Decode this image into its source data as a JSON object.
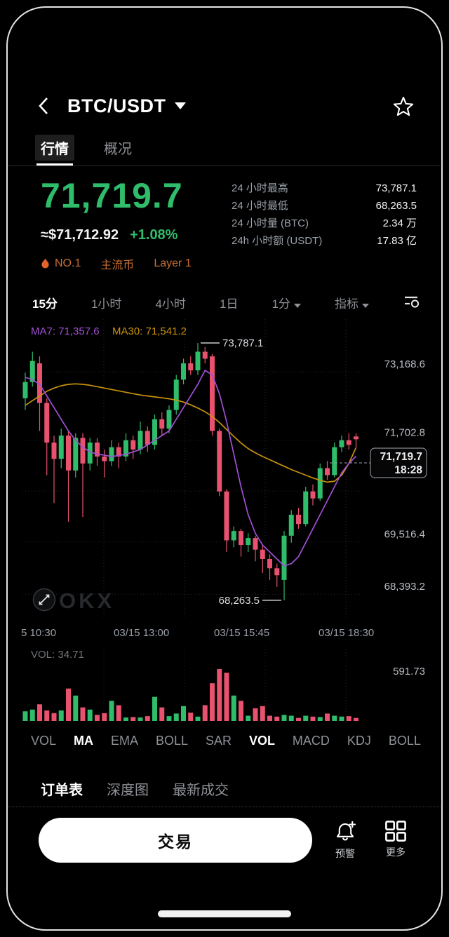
{
  "colors": {
    "up": "#2FBD6B",
    "down": "#E8526F",
    "ma7": "#A24FD4",
    "ma30": "#C9920E",
    "badge": "#C96F35",
    "price_green": "#2FBD6B"
  },
  "header": {
    "title": "BTC/USDT"
  },
  "tabs": [
    {
      "label": "行情",
      "active": true
    },
    {
      "label": "概况",
      "active": false
    }
  ],
  "price": {
    "last": "71,719.7",
    "fiat": "≈$71,712.92",
    "change": "+1.08%"
  },
  "stats": [
    {
      "label": "24 小时最高",
      "value": "73,787.1"
    },
    {
      "label": "24 小时最低",
      "value": "68,263.5"
    },
    {
      "label": "24 小时量 (BTC)",
      "value": "2.34 万"
    },
    {
      "label": "24h 小时额 (USDT)",
      "value": "17.83 亿"
    }
  ],
  "badges": [
    {
      "label": "NO.1"
    },
    {
      "label": "主流币"
    },
    {
      "label": "Layer 1"
    }
  ],
  "timeframes": [
    {
      "label": "15分",
      "active": true
    },
    {
      "label": "1小时",
      "active": false
    },
    {
      "label": "4小时",
      "active": false
    },
    {
      "label": "1日",
      "active": false
    },
    {
      "label": "1分",
      "active": false,
      "dropdown": true
    },
    {
      "label": "指标",
      "active": false,
      "dropdown": true
    }
  ],
  "chart_data": {
    "type": "candlestick",
    "interval": "15分",
    "legend": {
      "ma7": "MA7: 71,357.6",
      "ma30": "MA30: 71,541.2"
    },
    "watermark": "OKX",
    "axis": {
      "price_top": 74300,
      "price_bottom": 67900,
      "y_labels": [
        {
          "text": "73,168.6",
          "price": 73168.6
        },
        {
          "text": "71,702.8",
          "price": 71702.8
        },
        {
          "text": "69,516.4",
          "price": 69516.4
        },
        {
          "text": "68,393.2",
          "price": 68393.2
        }
      ],
      "h_grid_prices": [
        73168.6,
        71702.8,
        70609.6,
        69516.4,
        68393.2
      ],
      "v_grid_x": [
        118,
        233,
        348,
        463
      ],
      "x_labels": [
        "5 10:30",
        "03/15 13:00",
        "03/15 15:45",
        "03/15 18:30"
      ]
    },
    "annotations": {
      "high": {
        "candle_index": 24,
        "label": "73,787.1"
      },
      "low": {
        "candle_index": 36,
        "label": "68,263.5"
      },
      "current": {
        "price": "71,719.7",
        "time": "18:28"
      }
    },
    "candle_format": [
      "open",
      "close",
      "high",
      "low"
    ],
    "candles": [
      [
        72600,
        72950,
        73150,
        72350
      ],
      [
        72950,
        73400,
        73600,
        72850
      ],
      [
        73350,
        72500,
        73500,
        71900
      ],
      [
        72500,
        71650,
        72600,
        70950
      ],
      [
        71650,
        71300,
        71800,
        70350
      ],
      [
        71300,
        71800,
        71950,
        71100
      ],
      [
        71800,
        71050,
        71900,
        69950
      ],
      [
        71050,
        71750,
        71850,
        70900
      ],
      [
        71750,
        71200,
        71850,
        70050
      ],
      [
        71200,
        71650,
        71750,
        71050
      ],
      [
        71650,
        71350,
        71750,
        71150
      ],
      [
        71350,
        71250,
        71500,
        70900
      ],
      [
        71250,
        71550,
        71700,
        71150
      ],
      [
        71550,
        71350,
        71650,
        71100
      ],
      [
        71350,
        71700,
        71850,
        71250
      ],
      [
        71700,
        71500,
        71800,
        71300
      ],
      [
        71500,
        71900,
        72100,
        71400
      ],
      [
        71900,
        71600,
        72000,
        71450
      ],
      [
        71600,
        72150,
        72250,
        71500
      ],
      [
        72150,
        71950,
        72300,
        71800
      ],
      [
        71950,
        72350,
        72450,
        71850
      ],
      [
        72350,
        73000,
        73100,
        72250
      ],
      [
        73000,
        73350,
        73450,
        72900
      ],
      [
        73350,
        73200,
        73500,
        73100
      ],
      [
        73200,
        73600,
        73787.1,
        73100
      ],
      [
        73600,
        73450,
        73700,
        73350
      ],
      [
        73500,
        71900,
        73550,
        71800
      ],
      [
        71900,
        70600,
        71950,
        70500
      ],
      [
        70600,
        69550,
        70650,
        69300
      ],
      [
        69550,
        69750,
        69850,
        69400
      ],
      [
        69750,
        69450,
        69800,
        69200
      ],
      [
        69450,
        69600,
        69700,
        69300
      ],
      [
        69600,
        69350,
        69650,
        69100
      ],
      [
        69350,
        69150,
        69450,
        68850
      ],
      [
        69150,
        68950,
        69250,
        68700
      ],
      [
        68950,
        68800,
        69050,
        68550
      ],
      [
        68700,
        69650,
        69750,
        68263.5
      ],
      [
        69650,
        70100,
        70200,
        69500
      ],
      [
        70100,
        69900,
        70250,
        69800
      ],
      [
        69900,
        70600,
        70700,
        69850
      ],
      [
        70600,
        70450,
        70750,
        70300
      ],
      [
        70450,
        71100,
        71200,
        70400
      ],
      [
        71100,
        70950,
        71250,
        70850
      ],
      [
        70950,
        71550,
        71650,
        70900
      ],
      [
        71550,
        71700,
        71800,
        71450
      ],
      [
        71700,
        71600,
        71850,
        71500
      ],
      [
        71780,
        71719.7,
        71850,
        71550
      ]
    ],
    "ma7": [
      73050,
      73000,
      72900,
      72650,
      72400,
      72150,
      71900,
      71700,
      71550,
      71450,
      71400,
      71380,
      71350,
      71370,
      71400,
      71450,
      71500,
      71600,
      71700,
      71800,
      71900,
      72150,
      72400,
      72650,
      72900,
      73200,
      73100,
      72700,
      72100,
      71400,
      70700,
      70100,
      69700,
      69450,
      69300,
      69150,
      69000,
      69050,
      69200,
      69500,
      69800,
      70100,
      70400,
      70700,
      71000,
      71200,
      71357.6
    ],
    "ma30": [
      72450,
      72550,
      72650,
      72750,
      72820,
      72870,
      72900,
      72910,
      72900,
      72880,
      72850,
      72820,
      72790,
      72760,
      72730,
      72700,
      72670,
      72650,
      72630,
      72610,
      72590,
      72560,
      72520,
      72460,
      72390,
      72310,
      72210,
      72080,
      71930,
      71780,
      71640,
      71520,
      71430,
      71350,
      71280,
      71210,
      71140,
      71070,
      71010,
      70950,
      70890,
      70840,
      70800,
      70820,
      70950,
      71200,
      71541.2
    ],
    "volume": {
      "label": "VOL: 34.71",
      "max_label": "591.73",
      "max": 591.73,
      "values": [
        110,
        130,
        190,
        120,
        90,
        120,
        370,
        290,
        155,
        130,
        70,
        90,
        230,
        180,
        40,
        45,
        40,
        55,
        275,
        155,
        55,
        85,
        170,
        95,
        50,
        180,
        430,
        591.73,
        550,
        290,
        230,
        60,
        145,
        170,
        60,
        50,
        70,
        60,
        35,
        60,
        50,
        45,
        85,
        60,
        50,
        55,
        34.71
      ]
    }
  },
  "indicators": [
    {
      "label": "VOL",
      "active": false
    },
    {
      "label": "MA",
      "active": true
    },
    {
      "label": "EMA",
      "active": false
    },
    {
      "label": "BOLL",
      "active": false
    },
    {
      "label": "SAR",
      "active": false
    },
    {
      "label": "VOL",
      "active": true
    },
    {
      "label": "MACD",
      "active": false
    },
    {
      "label": "KDJ",
      "active": false
    },
    {
      "label": "BOLL",
      "active": false
    }
  ],
  "bottom_tabs": [
    {
      "label": "订单表",
      "active": true
    },
    {
      "label": "深度图",
      "active": false
    },
    {
      "label": "最新成交",
      "active": false
    }
  ],
  "actions": {
    "trade": "交易",
    "alert": "预警",
    "more": "更多"
  }
}
